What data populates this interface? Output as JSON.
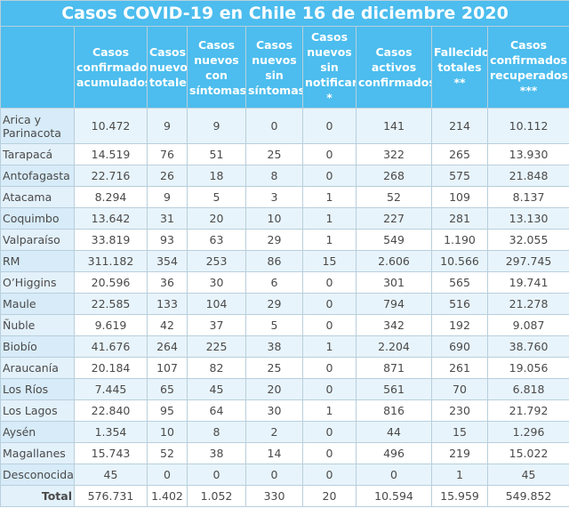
{
  "table": {
    "title": "Casos COVID-19 en Chile 16 de diciembre 2020",
    "headers": [
      "Casos confirmados acumulados",
      "Casos nuevos totales",
      "Casos nuevos con síntomas",
      "Casos nuevos sin síntomas",
      "Casos nuevos sin notificar *",
      "Casos activos confirmados",
      "Fallecidos totales **",
      "Casos confirmados recuperados ***"
    ],
    "rows": [
      [
        "Arica y Parinacota",
        "10.472",
        "9",
        "9",
        "0",
        "0",
        "141",
        "214",
        "10.112"
      ],
      [
        "Tarapacá",
        "14.519",
        "76",
        "51",
        "25",
        "0",
        "322",
        "265",
        "13.930"
      ],
      [
        "Antofagasta",
        "22.716",
        "26",
        "18",
        "8",
        "0",
        "268",
        "575",
        "21.848"
      ],
      [
        "Atacama",
        "8.294",
        "9",
        "5",
        "3",
        "1",
        "52",
        "109",
        "8.137"
      ],
      [
        "Coquimbo",
        "13.642",
        "31",
        "20",
        "10",
        "1",
        "227",
        "281",
        "13.130"
      ],
      [
        "Valparaíso",
        "33.819",
        "93",
        "63",
        "29",
        "1",
        "549",
        "1.190",
        "32.055"
      ],
      [
        "RM",
        "311.182",
        "354",
        "253",
        "86",
        "15",
        "2.606",
        "10.566",
        "297.745"
      ],
      [
        "O’Higgins",
        "20.596",
        "36",
        "30",
        "6",
        "0",
        "301",
        "565",
        "19.741"
      ],
      [
        "Maule",
        "22.585",
        "133",
        "104",
        "29",
        "0",
        "794",
        "516",
        "21.278"
      ],
      [
        "Ñuble",
        "9.619",
        "42",
        "37",
        "5",
        "0",
        "342",
        "192",
        "9.087"
      ],
      [
        "Biobío",
        "41.676",
        "264",
        "225",
        "38",
        "1",
        "2.204",
        "690",
        "38.760"
      ],
      [
        "Araucanía",
        "20.184",
        "107",
        "82",
        "25",
        "0",
        "871",
        "261",
        "19.056"
      ],
      [
        "Los Ríos",
        "7.445",
        "65",
        "45",
        "20",
        "0",
        "561",
        "70",
        "6.818"
      ],
      [
        "Los Lagos",
        "22.840",
        "95",
        "64",
        "30",
        "1",
        "816",
        "230",
        "21.792"
      ],
      [
        "Aysén",
        "1.354",
        "10",
        "8",
        "2",
        "0",
        "44",
        "15",
        "1.296"
      ],
      [
        "Magallanes",
        "15.743",
        "52",
        "38",
        "14",
        "0",
        "496",
        "219",
        "15.022"
      ],
      [
        "Desconocida",
        "45",
        "0",
        "0",
        "0",
        "0",
        "0",
        "1",
        "45"
      ]
    ],
    "total": [
      "Total",
      "576.731",
      "1.402",
      "1.052",
      "330",
      "20",
      "10.594",
      "15.959",
      "549.852"
    ]
  }
}
